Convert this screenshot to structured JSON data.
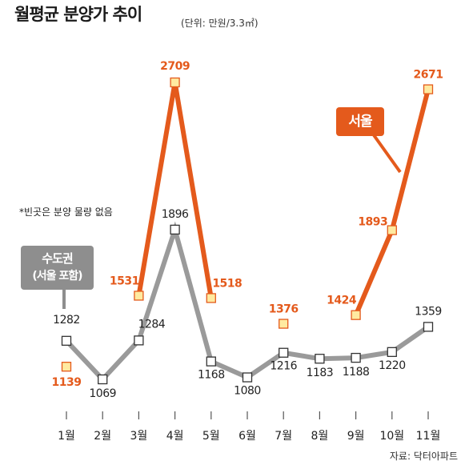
{
  "title": "월평균 분양가 추이",
  "unit": "(단위: 만원/3.3㎡)",
  "note": "*빈곳은 분양 물량 없음",
  "source": "자료: 닥터아파트",
  "colors": {
    "seoul": "#e45a1c",
    "seoul_marker": "#ffeaa0",
    "seoul_marker_border": "#e45a1c",
    "metro": "#9a9a9a",
    "metro_marker": "#ffffff",
    "metro_marker_border": "#333333",
    "seoul_label": "#e45a1c",
    "metro_label": "#222222"
  },
  "chart_data": {
    "type": "line",
    "categories": [
      "1월",
      "2월",
      "3월",
      "4월",
      "5월",
      "6월",
      "7월",
      "8월",
      "9월",
      "10월",
      "11월"
    ],
    "series": [
      {
        "name": "서울",
        "label": "서울",
        "values": [
          1139,
          null,
          1531,
          2709,
          1518,
          null,
          1376,
          null,
          1424,
          1893,
          2671
        ]
      },
      {
        "name": "수도권",
        "label": "수도권",
        "sublabel": "(서울 포함)",
        "values": [
          1282,
          1069,
          1284,
          1896,
          1168,
          1080,
          1216,
          1183,
          1188,
          1220,
          1359
        ]
      }
    ],
    "ylim": [
      950,
      2750
    ],
    "grid": false,
    "legend": "inline callouts"
  }
}
